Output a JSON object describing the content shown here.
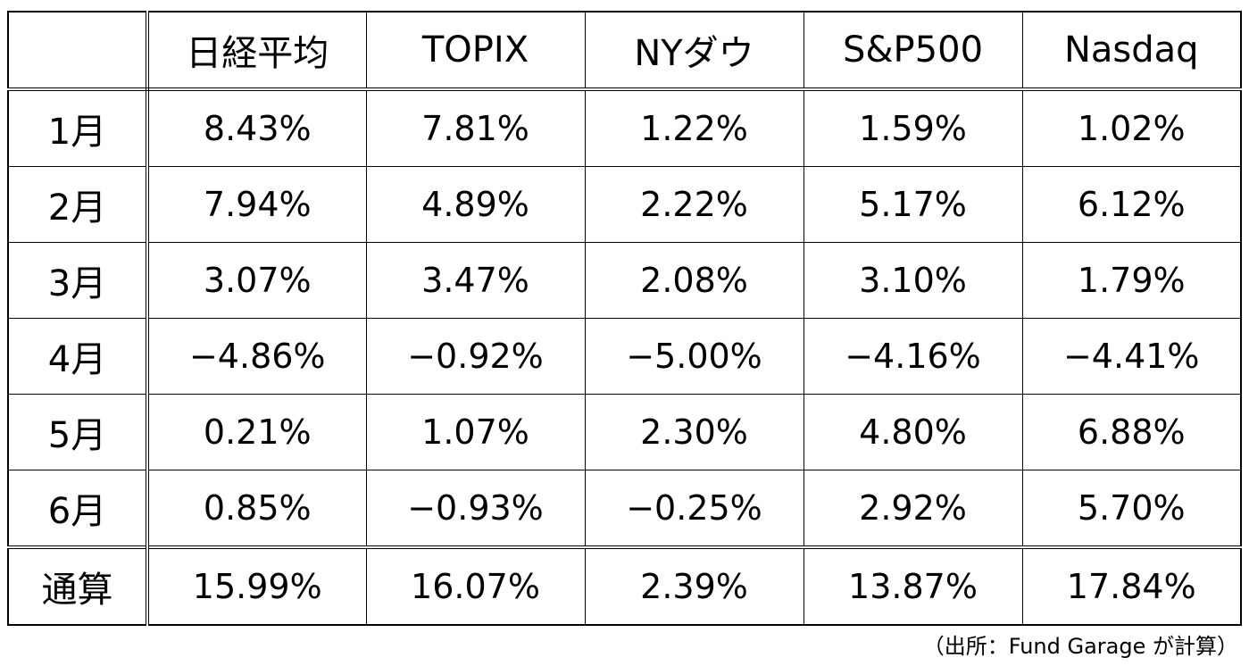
{
  "table": {
    "columns": [
      "",
      "日経平均",
      "TOPIX",
      "NYダウ",
      "S&P500",
      "Nasdaq"
    ],
    "rows": [
      {
        "label": "1月",
        "values": [
          "8.43%",
          "7.81%",
          "1.22%",
          "1.59%",
          "1.02%"
        ]
      },
      {
        "label": "2月",
        "values": [
          "7.94%",
          "4.89%",
          "2.22%",
          "5.17%",
          "6.12%"
        ]
      },
      {
        "label": "3月",
        "values": [
          "3.07%",
          "3.47%",
          "2.08%",
          "3.10%",
          "1.79%"
        ]
      },
      {
        "label": "4月",
        "values": [
          "−4.86%",
          "−0.92%",
          "−5.00%",
          "−4.16%",
          "−4.41%"
        ]
      },
      {
        "label": "5月",
        "values": [
          "0.21%",
          "1.07%",
          "2.30%",
          "4.80%",
          "6.88%"
        ]
      },
      {
        "label": "6月",
        "values": [
          "0.85%",
          "−0.93%",
          "−0.25%",
          "2.92%",
          "5.70%"
        ]
      },
      {
        "label": "通算",
        "values": [
          "15.99%",
          "16.07%",
          "2.39%",
          "13.87%",
          "17.84%"
        ]
      }
    ]
  },
  "source_note": "（出所：Fund Garage が計算）"
}
